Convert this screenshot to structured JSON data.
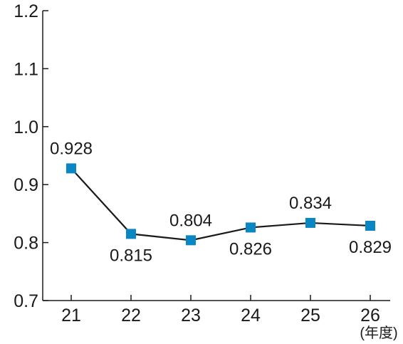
{
  "chart_data": {
    "type": "line",
    "categories": [
      "21",
      "22",
      "23",
      "24",
      "25",
      "26"
    ],
    "series": [
      {
        "values": [
          0.928,
          0.815,
          0.804,
          0.826,
          0.834,
          0.829
        ]
      }
    ],
    "data_labels": [
      "0.928",
      "0.815",
      "0.804",
      "0.826",
      "0.834",
      "0.829"
    ],
    "ylim": [
      0.7,
      1.2
    ],
    "y_ticks": [
      0.7,
      0.8,
      0.9,
      1.0,
      1.1,
      1.2
    ],
    "y_tick_labels": [
      "0.7",
      "0.8",
      "0.9",
      "1.0",
      "1.1",
      "1.2"
    ],
    "x_unit_label": "(年度)",
    "grid": false,
    "marker": "square",
    "marker_color": "#0a86c2",
    "line_color": "#1a1a1a"
  }
}
